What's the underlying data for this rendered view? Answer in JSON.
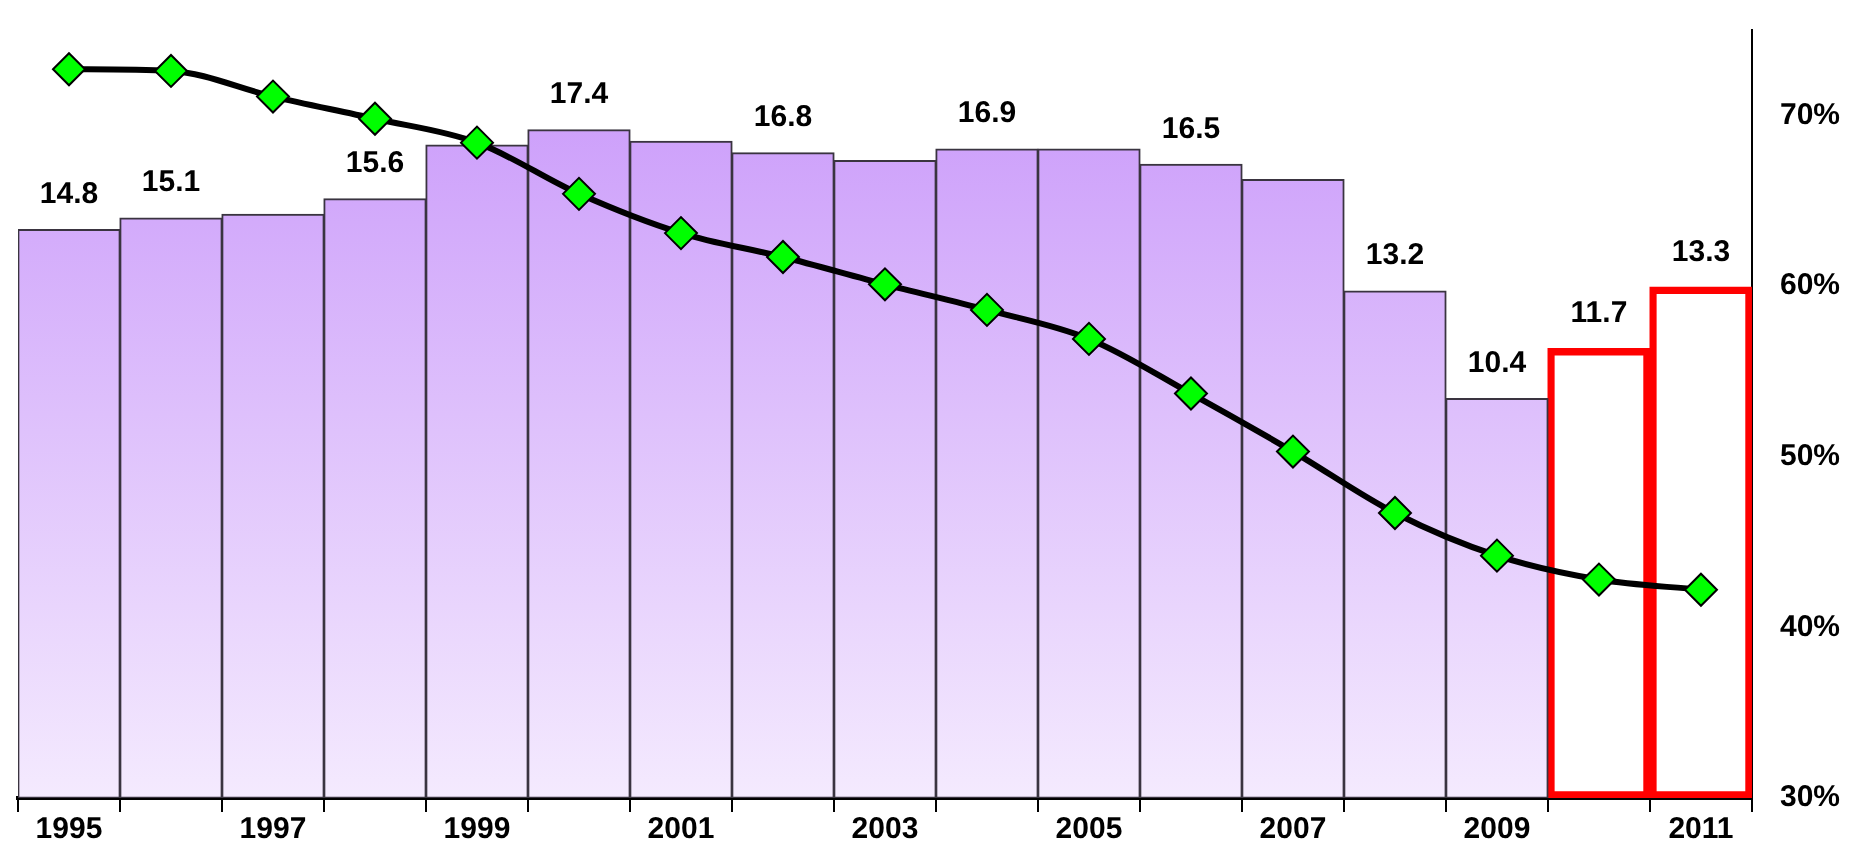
{
  "chart_data": {
    "type": "bar",
    "categories": [
      "1995",
      null,
      "1997",
      null,
      "1999",
      null,
      "2001",
      null,
      "2003",
      null,
      "2005",
      null,
      "2007",
      null,
      "2009",
      null,
      "2011"
    ],
    "stacked": true,
    "ylim": [
      0,
      20
    ],
    "y2lim": [
      30,
      75
    ],
    "y2ticks": [
      {
        "value": 30,
        "label": "30%"
      },
      {
        "value": 40,
        "label": "40%"
      },
      {
        "value": 50,
        "label": "50%"
      },
      {
        "value": 60,
        "label": "60%"
      },
      {
        "value": 70,
        "label": "70%"
      }
    ],
    "grid": false,
    "legend": false,
    "series": [
      {
        "color": "#c896fa",
        "values": [
          14.8,
          15.1,
          15.2,
          15.6,
          17.0,
          17.4,
          17.1,
          16.8,
          16.6,
          16.9,
          16.9,
          16.5,
          16.1,
          13.2,
          10.4,
          null,
          null
        ],
        "value_labels": [
          "14.8",
          "15.1",
          null,
          "15.6",
          null,
          "17.4",
          null,
          "16.8",
          null,
          "16.9",
          null,
          "16.5",
          null,
          "13.2",
          "10.4",
          null,
          null
        ]
      },
      {
        "color": "#ff0000",
        "values": [
          null,
          null,
          null,
          null,
          null,
          null,
          null,
          null,
          null,
          null,
          null,
          null,
          null,
          null,
          null,
          11.7,
          13.3
        ],
        "value_labels": [
          null,
          null,
          null,
          null,
          null,
          null,
          null,
          null,
          null,
          null,
          null,
          null,
          null,
          null,
          null,
          "11.7",
          "13.3"
        ]
      },
      {
        "type": "line",
        "axis": "y2",
        "color": "#000000",
        "marker": "diamond",
        "line_style": "solid",
        "values": [
          72.7,
          72.6,
          71.1,
          69.8,
          68.4,
          65.4,
          63.1,
          61.7,
          60.1,
          58.6,
          56.9,
          53.7,
          50.3,
          46.7,
          44.2,
          42.8,
          42.2
        ]
      }
    ]
  }
}
